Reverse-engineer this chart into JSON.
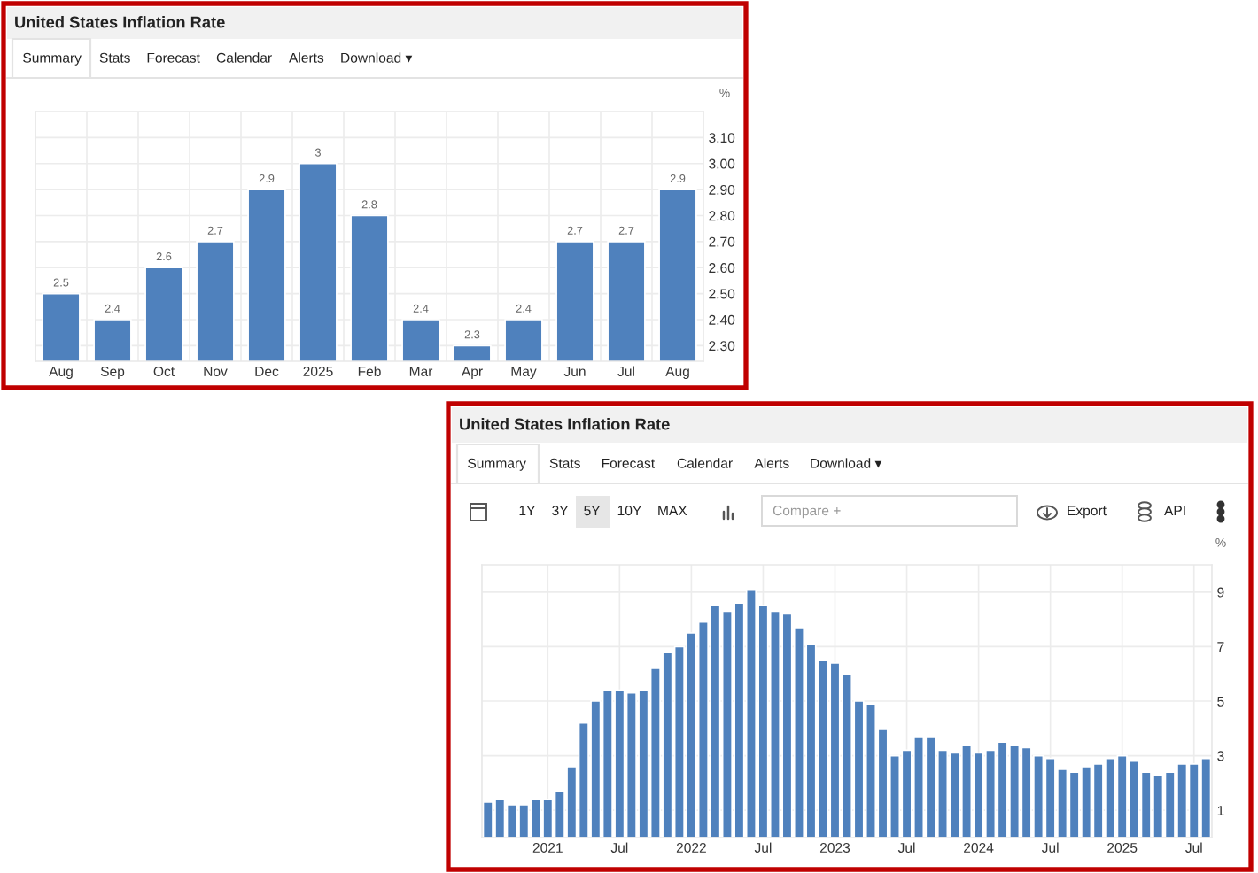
{
  "chart_data": [
    {
      "type": "bar",
      "title": "United States Inflation Rate",
      "categories": [
        "Aug",
        "Sep",
        "Oct",
        "Nov",
        "Dec",
        "2025",
        "Feb",
        "Mar",
        "Apr",
        "May",
        "Jun",
        "Jul",
        "Aug"
      ],
      "values": [
        2.5,
        2.4,
        2.6,
        2.7,
        2.9,
        3,
        2.8,
        2.4,
        2.3,
        2.4,
        2.7,
        2.7,
        2.9
      ],
      "color": "#4f81bd",
      "data_labels": true,
      "ylabel": "%",
      "ylim": [
        2.24,
        3.2
      ],
      "yticks": [
        {
          "value": 2.3,
          "label": "2.30"
        },
        {
          "value": 2.4,
          "label": "2.40"
        },
        {
          "value": 2.5,
          "label": "2.50"
        },
        {
          "value": 2.6,
          "label": "2.60"
        },
        {
          "value": 2.7,
          "label": "2.70"
        },
        {
          "value": 2.8,
          "label": "2.80"
        },
        {
          "value": 2.9,
          "label": "2.90"
        },
        {
          "value": 3.0,
          "label": "3.00"
        },
        {
          "value": 3.1,
          "label": "3.10"
        }
      ],
      "grid": true,
      "annotations": [
        "Summary",
        "Stats",
        "Forecast",
        "Calendar",
        "Alerts",
        "Download ▾"
      ]
    },
    {
      "type": "bar",
      "title": "United States Inflation Rate",
      "categories": [
        null,
        null,
        null,
        null,
        null,
        "2021",
        null,
        null,
        null,
        null,
        null,
        "Jul",
        null,
        null,
        null,
        null,
        null,
        "2022",
        null,
        null,
        null,
        null,
        null,
        "Jul",
        null,
        null,
        null,
        null,
        null,
        "2023",
        null,
        null,
        null,
        null,
        null,
        "Jul",
        null,
        null,
        null,
        null,
        null,
        "2024",
        null,
        null,
        null,
        null,
        null,
        "Jul",
        null,
        null,
        null,
        null,
        null,
        "2025",
        null,
        null,
        null,
        null,
        null,
        "Jul",
        null
      ],
      "values": [
        1.3,
        1.4,
        1.2,
        1.2,
        1.4,
        1.4,
        1.7,
        2.6,
        4.2,
        5.0,
        5.4,
        5.4,
        5.3,
        5.4,
        6.2,
        6.8,
        7.0,
        7.5,
        7.9,
        8.5,
        8.3,
        8.6,
        9.1,
        8.5,
        8.3,
        8.2,
        7.7,
        7.1,
        6.5,
        6.4,
        6.0,
        5.0,
        4.9,
        4.0,
        3.0,
        3.2,
        3.7,
        3.7,
        3.2,
        3.1,
        3.4,
        3.1,
        3.2,
        3.5,
        3.4,
        3.3,
        3.0,
        2.9,
        2.5,
        2.4,
        2.6,
        2.7,
        2.9,
        3.0,
        2.8,
        2.4,
        2.3,
        2.4,
        2.7,
        2.7,
        2.9
      ],
      "color": "#4f81bd",
      "ylabel": "%",
      "ylim": [
        0,
        10
      ],
      "yticks": [
        1,
        3,
        5,
        7,
        9
      ],
      "grid": true,
      "annotations": [
        "Summary",
        "Stats",
        "Forecast",
        "Calendar",
        "Alerts",
        "Download ▾",
        "1Y",
        "3Y",
        "5Y",
        "10Y",
        "MAX",
        "Compare +",
        "Export",
        "API"
      ]
    }
  ]
}
